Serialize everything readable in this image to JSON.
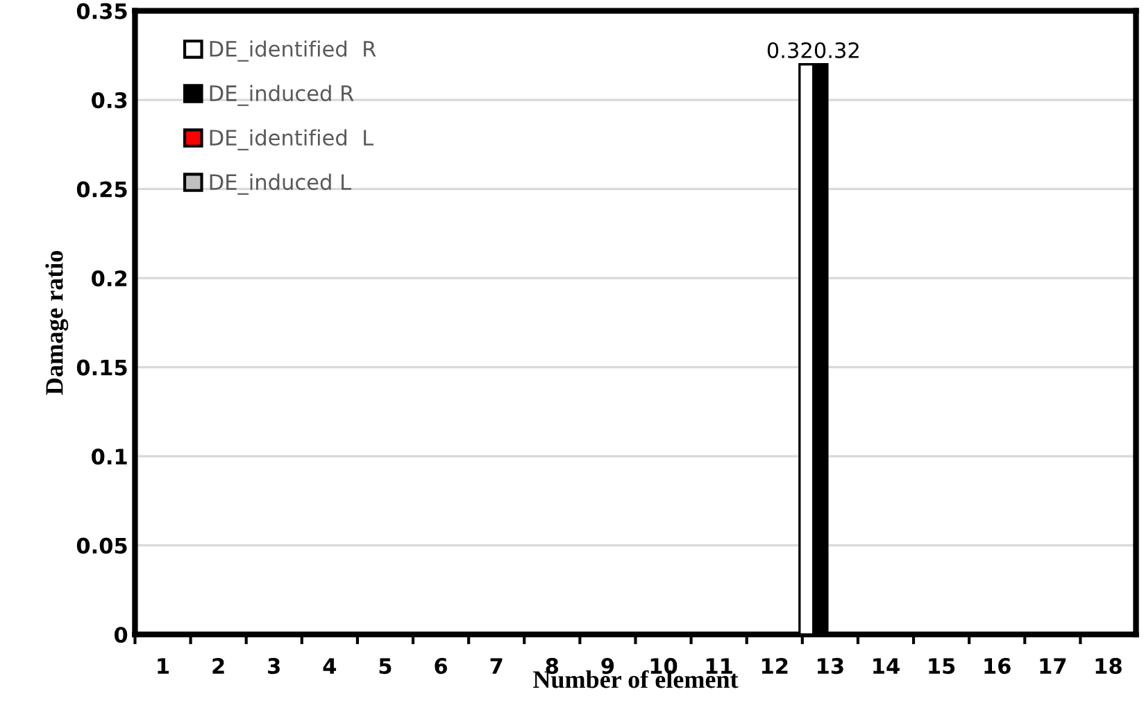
{
  "chart_data": {
    "type": "bar",
    "xlabel": "Number of element",
    "ylabel": "Damage ratio",
    "categories": [
      "1",
      "2",
      "3",
      "4",
      "5",
      "6",
      "7",
      "8",
      "9",
      "10",
      "11",
      "12",
      "13",
      "14",
      "15",
      "16",
      "17",
      "18"
    ],
    "series": [
      {
        "name": "DE_identified  R",
        "color": "#ffffff",
        "values": [
          0,
          0,
          0,
          0,
          0,
          0,
          0,
          0,
          0,
          0,
          0,
          0,
          0.32,
          0,
          0,
          0,
          0,
          0
        ],
        "value_labels": [
          null,
          null,
          null,
          null,
          null,
          null,
          null,
          null,
          null,
          null,
          null,
          null,
          "0.32",
          null,
          null,
          null,
          null,
          null
        ]
      },
      {
        "name": "DE_induced R",
        "color": "#000000",
        "values": [
          0,
          0,
          0,
          0,
          0,
          0,
          0,
          0,
          0,
          0,
          0,
          0,
          0.32,
          0,
          0,
          0,
          0,
          0
        ],
        "value_labels": [
          null,
          null,
          null,
          null,
          null,
          null,
          null,
          null,
          null,
          null,
          null,
          null,
          "0.32",
          null,
          null,
          null,
          null,
          null
        ]
      },
      {
        "name": "DE_identified  L",
        "color": "#ff0000",
        "values": [
          0,
          0,
          0,
          0,
          0,
          0,
          0,
          0,
          0,
          0,
          0,
          0,
          0,
          0,
          0,
          0,
          0,
          0
        ]
      },
      {
        "name": "DE_induced L",
        "color": "#c0c0c0",
        "values": [
          0,
          0,
          0,
          0,
          0,
          0,
          0,
          0,
          0,
          0,
          0,
          0,
          0,
          0,
          0,
          0,
          0,
          0
        ]
      }
    ],
    "ylim": [
      0,
      0.35
    ],
    "yticks": [
      {
        "value": 0,
        "label": "0"
      },
      0.05,
      {
        "value": 0.1,
        "label": "0.1"
      },
      0.15,
      {
        "value": 0.2,
        "label": "0.2"
      },
      0.25,
      {
        "value": 0.3,
        "label": "0.3"
      },
      0.35
    ],
    "grid": "y",
    "legend": "top left"
  }
}
